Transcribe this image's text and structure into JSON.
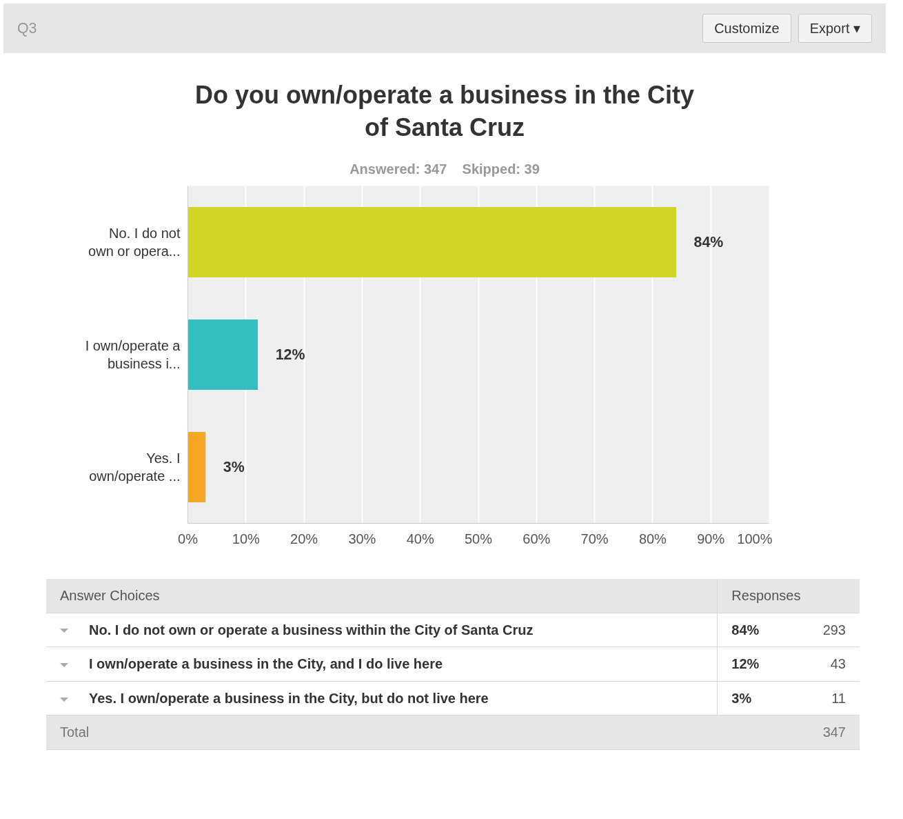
{
  "chart_data": {
    "type": "bar",
    "orientation": "horizontal",
    "title": "Do you own/operate a business in the City of Santa Cruz",
    "subtitle": "Answered: 347    Skipped: 39",
    "categories": [
      "No. I do not own or opera...",
      "I own/operate a business i...",
      "Yes. I own/operate ..."
    ],
    "values": [
      84,
      12,
      3
    ],
    "colors": [
      "#cfd626",
      "#33bfc0",
      "#f5a623"
    ],
    "value_labels": [
      "84%",
      "12%",
      "3%"
    ],
    "xlim": [
      0,
      100
    ],
    "xticks": [
      {
        "value": 0,
        "label": "0%"
      },
      {
        "value": 10,
        "label": "10%"
      },
      {
        "value": 20,
        "label": "20%"
      },
      {
        "value": 30,
        "label": "30%"
      },
      {
        "value": 40,
        "label": "40%"
      },
      {
        "value": 50,
        "label": "50%"
      },
      {
        "value": 60,
        "label": "60%"
      },
      {
        "value": 70,
        "label": "70%"
      },
      {
        "value": 80,
        "label": "80%"
      },
      {
        "value": 90,
        "label": "90%"
      },
      {
        "value": 100,
        "label": "100%"
      }
    ],
    "grid": "x",
    "annotations": [
      "Q3",
      "Customize",
      "Export ▾",
      "Answer Choices",
      "Responses",
      "No. I do not own or operate a business within the City of Santa Cruz",
      "84%",
      "293",
      "I own/operate a business in the City, and I do live here",
      "12%",
      "43",
      "Yes. I own/operate a business in the City, but do not live here",
      "3%",
      "11",
      "Total",
      "347"
    ]
  }
}
